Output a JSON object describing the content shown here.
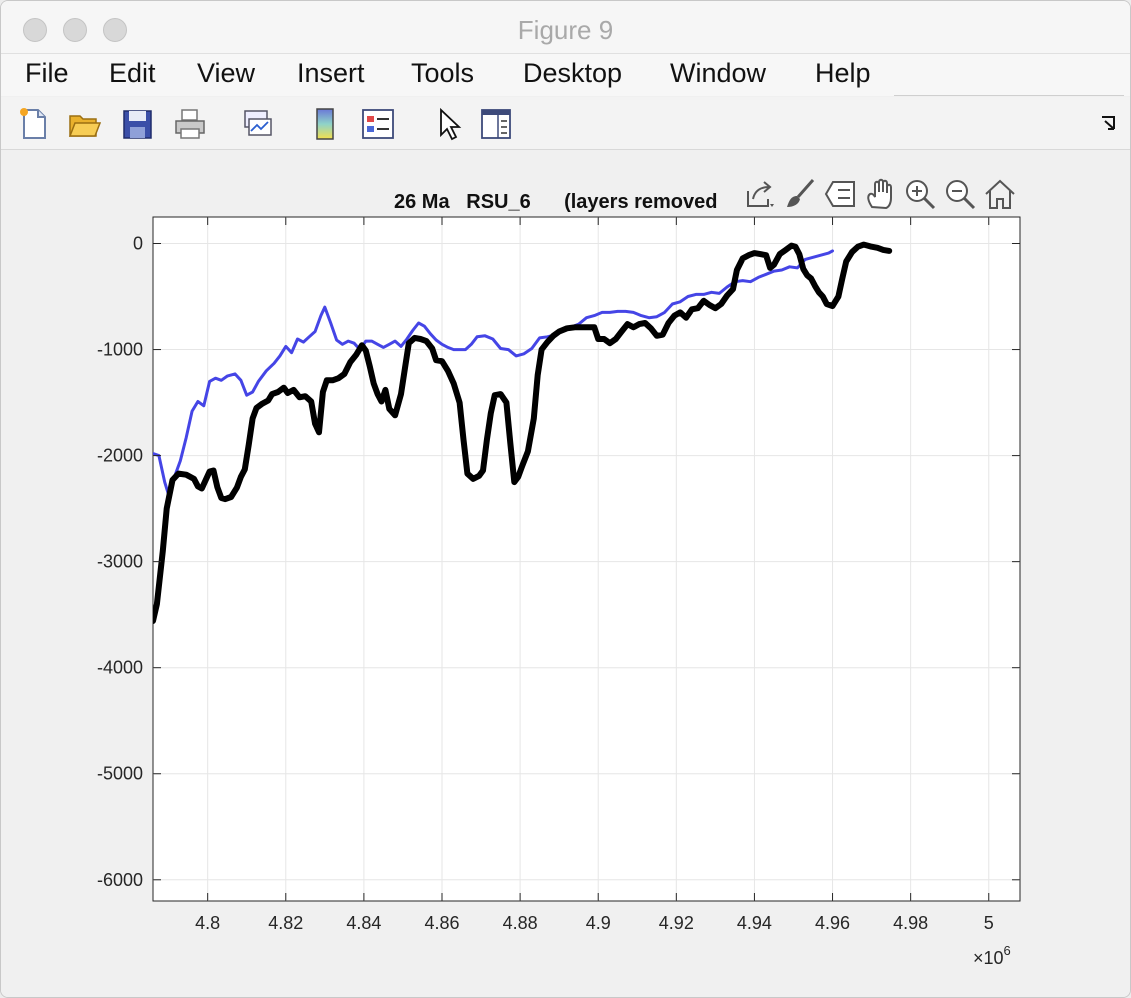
{
  "window": {
    "title": "Figure 9"
  },
  "menu": [
    "File",
    "Edit",
    "View",
    "Insert",
    "Tools",
    "Desktop",
    "Window",
    "Help"
  ],
  "toolbar_icons": [
    "new-figure-icon",
    "open-file-icon",
    "save-icon",
    "print-icon",
    "link-plot-icon",
    "colorbar-icon",
    "legend-icon",
    "edit-plot-pointer-icon",
    "property-inspector-icon",
    "dock-arrow-icon"
  ],
  "axes_toolbar_icons": [
    "export-icon",
    "brush-icon",
    "data-tips-icon",
    "pan-icon",
    "zoom-in-icon",
    "zoom-out-icon",
    "restore-view-icon"
  ],
  "colors": {
    "series_blue": "#4545e6",
    "series_black": "#000000",
    "grid": "#e6e6e6"
  },
  "chart_data": {
    "type": "line",
    "title": "26 Ma   RSU_6      (layers removed",
    "xlabel": "",
    "ylabel": "",
    "xlim": [
      4786000,
      5008000
    ],
    "ylim": [
      -6200,
      250
    ],
    "x_exponent_label": "×10^6",
    "xticks": [
      4.8,
      4.82,
      4.84,
      4.86,
      4.88,
      4.9,
      4.92,
      4.94,
      4.96,
      4.98,
      5
    ],
    "xtick_labels": [
      "4.8",
      "4.82",
      "4.84",
      "4.86",
      "4.88",
      "4.9",
      "4.92",
      "4.94",
      "4.96",
      "4.98",
      "5"
    ],
    "yticks": [
      0,
      -1000,
      -2000,
      -3000,
      -4000,
      -5000,
      -6000
    ],
    "ytick_labels": [
      "0",
      "-1000",
      "-2000",
      "-3000",
      "-4000",
      "-5000",
      "-6000"
    ],
    "grid": true,
    "series": [
      {
        "color": "#4545e6",
        "width": "thin",
        "points": [
          [
            4786000,
            -1980
          ],
          [
            4787500,
            -2000
          ],
          [
            4789000,
            -2250
          ],
          [
            4790000,
            -2370
          ],
          [
            4791500,
            -2200
          ],
          [
            4793000,
            -2050
          ],
          [
            4794500,
            -1830
          ],
          [
            4796000,
            -1580
          ],
          [
            4797500,
            -1490
          ],
          [
            4799000,
            -1530
          ],
          [
            4800500,
            -1300
          ],
          [
            4802000,
            -1270
          ],
          [
            4803500,
            -1290
          ],
          [
            4805000,
            -1250
          ],
          [
            4807000,
            -1230
          ],
          [
            4808500,
            -1290
          ],
          [
            4810000,
            -1430
          ],
          [
            4811500,
            -1400
          ],
          [
            4813000,
            -1300
          ],
          [
            4815000,
            -1200
          ],
          [
            4817000,
            -1130
          ],
          [
            4818500,
            -1060
          ],
          [
            4820000,
            -970
          ],
          [
            4821500,
            -1030
          ],
          [
            4823000,
            -900
          ],
          [
            4824500,
            -930
          ],
          [
            4826000,
            -880
          ],
          [
            4827500,
            -830
          ],
          [
            4829000,
            -680
          ],
          [
            4830000,
            -600
          ],
          [
            4831500,
            -750
          ],
          [
            4833000,
            -910
          ],
          [
            4834500,
            -950
          ],
          [
            4836000,
            -920
          ],
          [
            4837500,
            -940
          ],
          [
            4839000,
            -1000
          ],
          [
            4840500,
            -920
          ],
          [
            4842000,
            -920
          ],
          [
            4843500,
            -950
          ],
          [
            4845000,
            -980
          ],
          [
            4846500,
            -950
          ],
          [
            4848000,
            -920
          ],
          [
            4849500,
            -970
          ],
          [
            4851000,
            -900
          ],
          [
            4852500,
            -820
          ],
          [
            4854000,
            -750
          ],
          [
            4855500,
            -780
          ],
          [
            4857000,
            -850
          ],
          [
            4858500,
            -910
          ],
          [
            4860000,
            -950
          ],
          [
            4861500,
            -980
          ],
          [
            4863000,
            -1000
          ],
          [
            4864500,
            -1000
          ],
          [
            4866000,
            -1000
          ],
          [
            4867500,
            -950
          ],
          [
            4869000,
            -880
          ],
          [
            4871000,
            -870
          ],
          [
            4873000,
            -900
          ],
          [
            4875000,
            -990
          ],
          [
            4877000,
            -1000
          ],
          [
            4879000,
            -1060
          ],
          [
            4881000,
            -1040
          ],
          [
            4883000,
            -990
          ],
          [
            4885000,
            -890
          ],
          [
            4887000,
            -880
          ],
          [
            4889000,
            -860
          ],
          [
            4891000,
            -820
          ],
          [
            4893000,
            -790
          ],
          [
            4895000,
            -760
          ],
          [
            4897000,
            -700
          ],
          [
            4899000,
            -680
          ],
          [
            4901000,
            -650
          ],
          [
            4903000,
            -650
          ],
          [
            4905000,
            -640
          ],
          [
            4907000,
            -640
          ],
          [
            4909000,
            -650
          ],
          [
            4911000,
            -680
          ],
          [
            4913000,
            -700
          ],
          [
            4915000,
            -690
          ],
          [
            4917000,
            -650
          ],
          [
            4919000,
            -570
          ],
          [
            4921000,
            -550
          ],
          [
            4923000,
            -500
          ],
          [
            4925000,
            -480
          ],
          [
            4927000,
            -480
          ],
          [
            4929000,
            -460
          ],
          [
            4931000,
            -470
          ],
          [
            4933000,
            -410
          ],
          [
            4935000,
            -360
          ],
          [
            4937000,
            -350
          ],
          [
            4939000,
            -360
          ],
          [
            4941000,
            -320
          ],
          [
            4943000,
            -290
          ],
          [
            4945000,
            -260
          ],
          [
            4947000,
            -250
          ],
          [
            4949000,
            -220
          ],
          [
            4951000,
            -230
          ],
          [
            4953000,
            -150
          ],
          [
            4955000,
            -130
          ],
          [
            4957000,
            -110
          ],
          [
            4959000,
            -90
          ],
          [
            4960000,
            -70
          ]
        ]
      },
      {
        "color": "#000000",
        "width": "thick",
        "points": [
          [
            4786000,
            -3560
          ],
          [
            4787000,
            -3400
          ],
          [
            4788500,
            -2900
          ],
          [
            4789500,
            -2500
          ],
          [
            4791000,
            -2230
          ],
          [
            4792500,
            -2170
          ],
          [
            4794500,
            -2180
          ],
          [
            4796500,
            -2220
          ],
          [
            4797500,
            -2290
          ],
          [
            4798500,
            -2310
          ],
          [
            4799500,
            -2230
          ],
          [
            4800500,
            -2150
          ],
          [
            4801500,
            -2140
          ],
          [
            4802500,
            -2300
          ],
          [
            4803500,
            -2400
          ],
          [
            4804500,
            -2410
          ],
          [
            4806000,
            -2390
          ],
          [
            4807500,
            -2300
          ],
          [
            4808500,
            -2200
          ],
          [
            4809500,
            -2130
          ],
          [
            4810500,
            -1900
          ],
          [
            4811500,
            -1650
          ],
          [
            4812500,
            -1550
          ],
          [
            4814000,
            -1510
          ],
          [
            4815500,
            -1480
          ],
          [
            4816500,
            -1420
          ],
          [
            4818000,
            -1400
          ],
          [
            4819500,
            -1360
          ],
          [
            4820500,
            -1410
          ],
          [
            4822000,
            -1380
          ],
          [
            4823500,
            -1450
          ],
          [
            4825000,
            -1440
          ],
          [
            4826500,
            -1490
          ],
          [
            4827500,
            -1700
          ],
          [
            4828500,
            -1780
          ],
          [
            4829500,
            -1400
          ],
          [
            4830500,
            -1290
          ],
          [
            4832000,
            -1290
          ],
          [
            4833500,
            -1270
          ],
          [
            4835000,
            -1230
          ],
          [
            4836500,
            -1120
          ],
          [
            4838000,
            -1050
          ],
          [
            4839500,
            -960
          ],
          [
            4840500,
            -1010
          ],
          [
            4841500,
            -1160
          ],
          [
            4842500,
            -1320
          ],
          [
            4843500,
            -1420
          ],
          [
            4844500,
            -1490
          ],
          [
            4845500,
            -1380
          ],
          [
            4846500,
            -1560
          ],
          [
            4848000,
            -1620
          ],
          [
            4849500,
            -1420
          ],
          [
            4850500,
            -1180
          ],
          [
            4851500,
            -940
          ],
          [
            4853000,
            -890
          ],
          [
            4854500,
            -900
          ],
          [
            4856000,
            -920
          ],
          [
            4857500,
            -990
          ],
          [
            4858500,
            -1100
          ],
          [
            4860000,
            -1110
          ],
          [
            4861500,
            -1200
          ],
          [
            4863000,
            -1320
          ],
          [
            4864500,
            -1500
          ],
          [
            4865500,
            -1850
          ],
          [
            4866500,
            -2170
          ],
          [
            4868000,
            -2220
          ],
          [
            4869500,
            -2190
          ],
          [
            4870500,
            -2140
          ],
          [
            4871500,
            -1850
          ],
          [
            4872500,
            -1600
          ],
          [
            4873500,
            -1430
          ],
          [
            4875000,
            -1420
          ],
          [
            4876500,
            -1500
          ],
          [
            4877500,
            -1880
          ],
          [
            4878500,
            -2250
          ],
          [
            4879500,
            -2200
          ],
          [
            4880500,
            -2100
          ],
          [
            4882000,
            -1960
          ],
          [
            4883500,
            -1650
          ],
          [
            4884500,
            -1240
          ],
          [
            4885500,
            -1000
          ],
          [
            4887000,
            -930
          ],
          [
            4888500,
            -870
          ],
          [
            4890000,
            -830
          ],
          [
            4892000,
            -800
          ],
          [
            4894000,
            -790
          ],
          [
            4896000,
            -790
          ],
          [
            4898000,
            -790
          ],
          [
            4899000,
            -790
          ],
          [
            4900000,
            -900
          ],
          [
            4901500,
            -900
          ],
          [
            4903000,
            -940
          ],
          [
            4904500,
            -900
          ],
          [
            4906000,
            -830
          ],
          [
            4907500,
            -760
          ],
          [
            4909000,
            -790
          ],
          [
            4910500,
            -760
          ],
          [
            4912000,
            -750
          ],
          [
            4913500,
            -800
          ],
          [
            4915000,
            -870
          ],
          [
            4916500,
            -860
          ],
          [
            4918000,
            -750
          ],
          [
            4919500,
            -680
          ],
          [
            4921000,
            -650
          ],
          [
            4922500,
            -700
          ],
          [
            4924000,
            -620
          ],
          [
            4925500,
            -610
          ],
          [
            4927000,
            -540
          ],
          [
            4928500,
            -580
          ],
          [
            4930000,
            -610
          ],
          [
            4931500,
            -570
          ],
          [
            4933000,
            -490
          ],
          [
            4934500,
            -430
          ],
          [
            4935500,
            -250
          ],
          [
            4937000,
            -140
          ],
          [
            4938500,
            -110
          ],
          [
            4940000,
            -90
          ],
          [
            4941500,
            -100
          ],
          [
            4943000,
            -110
          ],
          [
            4944000,
            -230
          ],
          [
            4945000,
            -200
          ],
          [
            4946500,
            -100
          ],
          [
            4948000,
            -60
          ],
          [
            4949500,
            -20
          ],
          [
            4950500,
            -30
          ],
          [
            4951500,
            -100
          ],
          [
            4952500,
            -240
          ],
          [
            4953500,
            -300
          ],
          [
            4954500,
            -330
          ],
          [
            4955500,
            -400
          ],
          [
            4956500,
            -460
          ],
          [
            4957500,
            -500
          ],
          [
            4958500,
            -570
          ],
          [
            4960000,
            -590
          ],
          [
            4961500,
            -500
          ],
          [
            4962500,
            -330
          ],
          [
            4963500,
            -170
          ],
          [
            4965000,
            -80
          ],
          [
            4966500,
            -30
          ],
          [
            4968000,
            -10
          ],
          [
            4969000,
            -20
          ],
          [
            4970000,
            -30
          ],
          [
            4971500,
            -40
          ],
          [
            4973000,
            -60
          ],
          [
            4974500,
            -70
          ]
        ]
      }
    ]
  }
}
